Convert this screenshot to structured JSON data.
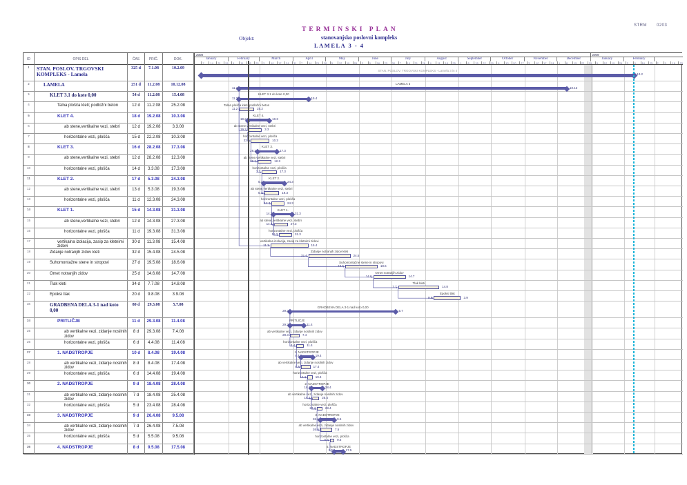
{
  "header": {
    "title": "TERMINSKI  PLAN",
    "objekt_label": "Objekt:",
    "project": "stanovanjsko poslovni kompleks",
    "lamela": "LAMELA  3 - 4",
    "ref_code": "STRM",
    "ref_num": "0203"
  },
  "table": {
    "columns": [
      "ID",
      "OPIS DEL",
      "ČAS",
      "PRIČ.",
      "DOK."
    ]
  },
  "timeline": {
    "years": [
      {
        "label": "2008",
        "months": 12
      },
      {
        "label": "2009",
        "months": 2
      }
    ],
    "months": [
      "January",
      "February",
      "March",
      "April",
      "May",
      "June",
      "July",
      "August",
      "September",
      "October",
      "November",
      "December",
      "January",
      "February",
      ""
    ],
    "month_days": [
      31,
      29,
      31,
      30,
      31,
      30,
      31,
      31,
      30,
      31,
      30,
      31,
      31,
      28,
      27
    ],
    "first_week_tick": "7.1.08",
    "week_step_days": 7
  },
  "chart_data": {
    "type": "bar",
    "subtype": "gantt",
    "title": "TERMINSKI PLAN — stanovanjsko poslovni kompleks LAMELA 3-4",
    "axis": {
      "start": "1.1.08",
      "end": "28.3.09",
      "unit": "days"
    },
    "status_line_date": "20.2.08",
    "finish_line_date": "10.2.09",
    "holiday_band": {
      "start": "26.12.08",
      "end": "3.1.09"
    },
    "colors": {
      "accent": "#5c5ca8",
      "task_fill": "#f8f3dc",
      "task_border": "#52529e",
      "title_purple": "#993399",
      "navy": "#2b2b8c",
      "group_blue": "#3434b8",
      "finish_cyan": "#1ab4d8",
      "status_gray": "#4d4d4d"
    },
    "tasks": [
      {
        "id": 1,
        "name": "STAN. POSLOV. TRGOVSKI KOMPLEKS -  Lamela",
        "dur": "325 d",
        "start": "7.1.08",
        "end": "10.2.09",
        "style": "sum1",
        "indent": 0,
        "tall": true,
        "chart_label": "STAN. POSLOV. TRGOVSKI KOMPLEKS - Lamela 3 in 4",
        "hide_start_label": true,
        "label_color": "#999999"
      },
      {
        "id": 2,
        "name": "LAMELA",
        "dur": "251 d",
        "start": "11.2.08",
        "end": "10.12.08",
        "style": "sum2",
        "indent": 1,
        "chart_label": "LAMELA 3"
      },
      {
        "id": 3,
        "name": "KLET  3.1 do kote 0,00",
        "dur": "54 d",
        "start": "11.2.08",
        "end": "15.4.08",
        "style": "sum3",
        "indent": 2,
        "chart_label": "KLET  3.1 do kote 0,00"
      },
      {
        "id": 4,
        "name": "Talna plošča kleti; podložni beton",
        "dur": "12 d",
        "start": "11.2.08",
        "end": "25.2.08",
        "style": "task",
        "indent": 3
      },
      {
        "id": 5,
        "name": "KLET 4.",
        "dur": "18 d",
        "start": "19.2.08",
        "end": "10.3.08",
        "style": "grp",
        "indent": 3
      },
      {
        "id": 6,
        "name": "ab stene,vertikalne vezi, stebri",
        "dur": "12 d",
        "start": "19.2.08",
        "end": "3.3.08",
        "style": "task",
        "indent": 4
      },
      {
        "id": 7,
        "name": "horizontalne vezi, plošča",
        "dur": "15 d",
        "start": "22.2.08",
        "end": "10.3.08",
        "style": "task",
        "indent": 4
      },
      {
        "id": 8,
        "name": "KLET 3.",
        "dur": "16 d",
        "start": "28.2.08",
        "end": "17.3.08",
        "style": "grp",
        "indent": 3
      },
      {
        "id": 9,
        "name": "ab stene,vertikalne vezi, stebri",
        "dur": "12 d",
        "start": "28.2.08",
        "end": "12.3.08",
        "style": "task",
        "indent": 4
      },
      {
        "id": 10,
        "name": "horizontalne vezi, plošča",
        "dur": "14 d",
        "start": "3.3.08",
        "end": "17.3.08",
        "style": "task",
        "indent": 4
      },
      {
        "id": 11,
        "name": "KLET 2.",
        "dur": "17 d",
        "start": "5.3.08",
        "end": "24.3.08",
        "style": "grp",
        "indent": 3
      },
      {
        "id": 12,
        "name": "ab stene,vertikalne vezi, stebri",
        "dur": "13 d",
        "start": "5.3.08",
        "end": "19.3.08",
        "style": "task",
        "indent": 4
      },
      {
        "id": 13,
        "name": "horizontalne vezi, plošča",
        "dur": "11 d",
        "start": "12.3.08",
        "end": "24.3.08",
        "style": "task",
        "indent": 4
      },
      {
        "id": 14,
        "name": "KLET 1.",
        "dur": "15 d",
        "start": "14.3.08",
        "end": "31.3.08",
        "style": "grp",
        "indent": 3
      },
      {
        "id": 15,
        "name": "ab stene,vertikalne vezi, stebri",
        "dur": "12 d",
        "start": "14.3.08",
        "end": "27.3.08",
        "style": "task",
        "indent": 4
      },
      {
        "id": 16,
        "name": "horizontalne vezi, plošča",
        "dur": "11 d",
        "start": "19.3.08",
        "end": "31.3.08",
        "style": "task",
        "indent": 4
      },
      {
        "id": 17,
        "name": "vertikalna izolacija, zasip za kletnimi zidovi",
        "dur": "30 d",
        "start": "11.3.08",
        "end": "15.4.08",
        "style": "task",
        "indent": 3
      },
      {
        "id": 18,
        "name": "Zidanje notranjih zidov kleti",
        "dur": "32 d",
        "start": "15.4.08",
        "end": "24.5.08",
        "style": "task",
        "indent": 2
      },
      {
        "id": 19,
        "name": "Suhomontažne stene in stropovi",
        "dur": "27 d",
        "start": "19.5.08",
        "end": "18.6.08",
        "style": "task",
        "indent": 2
      },
      {
        "id": 20,
        "name": "Omet notranjih zidov",
        "dur": "25 d",
        "start": "14.6.08",
        "end": "14.7.08",
        "style": "task",
        "indent": 2
      },
      {
        "id": 21,
        "name": "Tlak kleti",
        "dur": "34 d",
        "start": "7.7.08",
        "end": "14.8.08",
        "style": "task",
        "indent": 2
      },
      {
        "id": 22,
        "name": "Epoksi tlak",
        "dur": "20 d",
        "start": "9.8.08",
        "end": "3.9.08",
        "style": "task",
        "indent": 2
      },
      {
        "id": 23,
        "name": "GRADBENA DELA  3-1 nad koto 0,00",
        "dur": "80 d",
        "start": "29.3.08",
        "end": "5.7.08",
        "style": "sum3",
        "indent": 2,
        "tall": true,
        "chart_label": "GRADBENA DELA  3-1 nad koto 0,00"
      },
      {
        "id": 24,
        "name": "PRITLIČJE",
        "dur": "11 d",
        "start": "29.3.08",
        "end": "11.4.08",
        "style": "grp",
        "indent": 3
      },
      {
        "id": 25,
        "name": "ab vertikalne vezi, zidanje nosilnih zidov",
        "dur": "8 d",
        "start": "29.3.08",
        "end": "7.4.08",
        "style": "task",
        "indent": 4
      },
      {
        "id": 26,
        "name": "horizontalne vezi, plošča",
        "dur": "6 d",
        "start": "4.4.08",
        "end": "11.4.08",
        "style": "task",
        "indent": 4
      },
      {
        "id": 27,
        "name": "1. NADSTROPJE",
        "dur": "10 d",
        "start": "8.4.08",
        "end": "19.4.08",
        "style": "grp",
        "indent": 3
      },
      {
        "id": 28,
        "name": "ab vertikalne vezi, zidanje nosilnih zidov",
        "dur": "8 d",
        "start": "8.4.08",
        "end": "17.4.08",
        "style": "task",
        "indent": 4
      },
      {
        "id": 29,
        "name": "horizontalne vezi, plošča",
        "dur": "6 d",
        "start": "14.4.08",
        "end": "19.4.08",
        "style": "task",
        "indent": 4
      },
      {
        "id": 30,
        "name": "2. NADSTROPJE",
        "dur": "9 d",
        "start": "18.4.08",
        "end": "28.4.08",
        "style": "grp",
        "indent": 3
      },
      {
        "id": 31,
        "name": "ab vertikalne vezi, zidanje nosilnih zidov",
        "dur": "7 d",
        "start": "18.4.08",
        "end": "25.4.08",
        "style": "task",
        "indent": 4
      },
      {
        "id": 32,
        "name": "horizontalne vezi, plošča",
        "dur": "5 d",
        "start": "23.4.08",
        "end": "28.4.08",
        "style": "task",
        "indent": 4
      },
      {
        "id": 33,
        "name": "3. NADSTROPJE",
        "dur": "9 d",
        "start": "26.4.08",
        "end": "9.5.08",
        "style": "grp",
        "indent": 3
      },
      {
        "id": 34,
        "name": "ab vertikalne vezi, zidanje nosilnih zidov",
        "dur": "7 d",
        "start": "26.4.08",
        "end": "7.5.08",
        "style": "task",
        "indent": 4
      },
      {
        "id": 35,
        "name": "horizontalne vezi, plošča",
        "dur": "5 d",
        "start": "5.5.08",
        "end": "9.5.08",
        "style": "task",
        "indent": 4
      },
      {
        "id": 36,
        "name": "4. NADSTROPJE",
        "dur": "8 d",
        "start": "9.5.08",
        "end": "17.5.08",
        "style": "grp",
        "indent": 3
      }
    ],
    "links": [
      [
        2,
        3
      ],
      [
        3,
        4
      ],
      [
        4,
        6
      ],
      [
        5,
        6
      ],
      [
        6,
        7
      ],
      [
        7,
        9
      ],
      [
        8,
        9
      ],
      [
        9,
        10
      ],
      [
        10,
        12
      ],
      [
        11,
        12
      ],
      [
        12,
        13
      ],
      [
        13,
        15
      ],
      [
        14,
        15
      ],
      [
        15,
        16
      ],
      [
        3,
        17
      ],
      [
        17,
        18
      ],
      [
        18,
        19
      ],
      [
        19,
        20
      ],
      [
        20,
        21
      ],
      [
        21,
        22
      ],
      [
        23,
        24
      ],
      [
        24,
        25
      ],
      [
        25,
        26
      ],
      [
        26,
        28
      ],
      [
        27,
        28
      ],
      [
        28,
        29
      ],
      [
        29,
        31
      ],
      [
        30,
        31
      ],
      [
        31,
        32
      ],
      [
        32,
        34
      ],
      [
        33,
        34
      ],
      [
        34,
        35
      ],
      [
        35,
        36
      ]
    ]
  }
}
